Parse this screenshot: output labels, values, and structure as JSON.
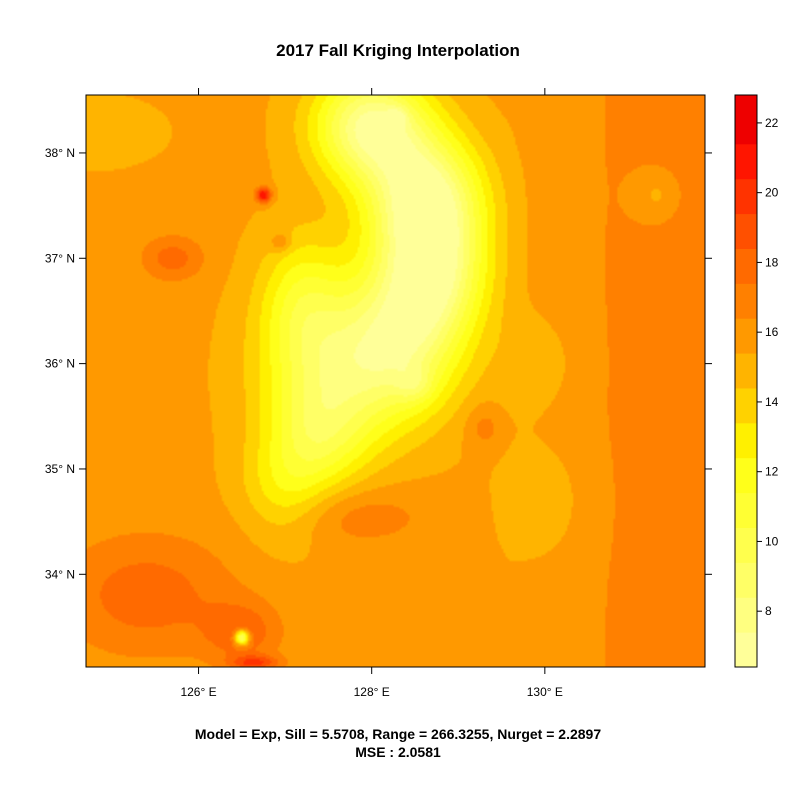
{
  "chart_data": {
    "type": "heatmap",
    "title": "2017 Fall Kriging Interpolation",
    "xlabel": "",
    "ylabel": "",
    "xlim": [
      124.7,
      131.85
    ],
    "ylim": [
      33.12,
      38.55
    ],
    "x_ticks": [
      126,
      128,
      130
    ],
    "x_tick_labels": [
      "126° E",
      "128° E",
      "130° E"
    ],
    "y_ticks": [
      34,
      35,
      36,
      37,
      38
    ],
    "y_tick_labels": [
      "34° N",
      "35° N",
      "36° N",
      "37° N",
      "38° N"
    ],
    "colorbar": {
      "range": [
        6.4,
        22.8
      ],
      "levels": [
        6.4,
        7.4,
        8.4,
        9.4,
        10.4,
        11.4,
        12.4,
        13.4,
        14.4,
        15.4,
        16.4,
        17.4,
        18.4,
        19.4,
        20.4,
        21.4,
        22.8
      ],
      "colors": [
        "#FFFF99",
        "#FFFF80",
        "#FFFF66",
        "#FFFF4D",
        "#FFFF33",
        "#FFFF1A",
        "#FFF000",
        "#FFD200",
        "#FFB400",
        "#FF9900",
        "#FF8000",
        "#FF6A00",
        "#FF5000",
        "#FF3300",
        "#FF1500",
        "#EE0000"
      ],
      "ticks": [
        8,
        10,
        12,
        14,
        16,
        18,
        20,
        22
      ],
      "tick_labels": [
        "8",
        "10",
        "12",
        "14",
        "16",
        "18",
        "20",
        "22"
      ]
    },
    "surface": {
      "base": 15.6,
      "east_gradient": {
        "x0": 129.6,
        "x1": 131.8,
        "delta": 1.6
      },
      "features": [
        {
          "x": 128.0,
          "y": 38.25,
          "sx": 0.45,
          "sy": 0.35,
          "amp": -8.5
        },
        {
          "x": 128.6,
          "y": 37.6,
          "sx": 0.45,
          "sy": 0.4,
          "amp": -8
        },
        {
          "x": 128.7,
          "y": 36.9,
          "sx": 0.42,
          "sy": 0.45,
          "amp": -7.5
        },
        {
          "x": 128.3,
          "y": 36.2,
          "sx": 0.5,
          "sy": 0.5,
          "amp": -6.5
        },
        {
          "x": 127.5,
          "y": 35.9,
          "sx": 0.55,
          "sy": 0.5,
          "amp": -4.5
        },
        {
          "x": 127.4,
          "y": 35.3,
          "sx": 0.4,
          "sy": 0.35,
          "amp": -3.5
        },
        {
          "x": 127.2,
          "y": 36.6,
          "sx": 0.35,
          "sy": 0.45,
          "amp": -3.5
        },
        {
          "x": 127.0,
          "y": 34.8,
          "sx": 0.35,
          "sy": 0.35,
          "amp": -2.5
        },
        {
          "x": 126.75,
          "y": 37.6,
          "sx": 0.06,
          "sy": 0.05,
          "amp": 6
        },
        {
          "x": 126.95,
          "y": 37.15,
          "sx": 0.08,
          "sy": 0.06,
          "amp": 2
        },
        {
          "x": 125.7,
          "y": 37.0,
          "sx": 0.25,
          "sy": 0.15,
          "amp": 2.3
        },
        {
          "x": 131.3,
          "y": 37.6,
          "sx": 0.2,
          "sy": 0.18,
          "amp": -1.5
        },
        {
          "x": 125.4,
          "y": 33.8,
          "sx": 0.7,
          "sy": 0.4,
          "amp": 2.4
        },
        {
          "x": 126.5,
          "y": 33.45,
          "sx": 0.3,
          "sy": 0.2,
          "amp": 2.4
        },
        {
          "x": 126.5,
          "y": 33.4,
          "sx": 0.06,
          "sy": 0.05,
          "amp": -9
        },
        {
          "x": 127.8,
          "y": 34.55,
          "sx": 0.6,
          "sy": 0.2,
          "amp": 1.5
        },
        {
          "x": 129.3,
          "y": 35.4,
          "sx": 0.15,
          "sy": 0.15,
          "amp": 1.4
        },
        {
          "x": 126.65,
          "y": 33.16,
          "sx": 0.2,
          "sy": 0.05,
          "amp": 3.5
        },
        {
          "x": 124.75,
          "y": 38.2,
          "sx": 0.5,
          "sy": 0.2,
          "amp": -1.2
        },
        {
          "x": 129.9,
          "y": 36.0,
          "sx": 0.3,
          "sy": 0.3,
          "amp": -1.2
        },
        {
          "x": 130.0,
          "y": 34.7,
          "sx": 0.35,
          "sy": 0.4,
          "amp": -1.1
        },
        {
          "x": 128.5,
          "y": 35.8,
          "sx": 0.15,
          "sy": 0.12,
          "amp": -2
        },
        {
          "x": 128.3,
          "y": 38.35,
          "sx": 0.08,
          "sy": 0.06,
          "amp": -2
        }
      ]
    }
  },
  "footer": {
    "line1": "Model = Exp, Sill = 5.5708, Range = 266.3255, Nurget = 2.2897",
    "line2": "MSE : 2.0581"
  }
}
